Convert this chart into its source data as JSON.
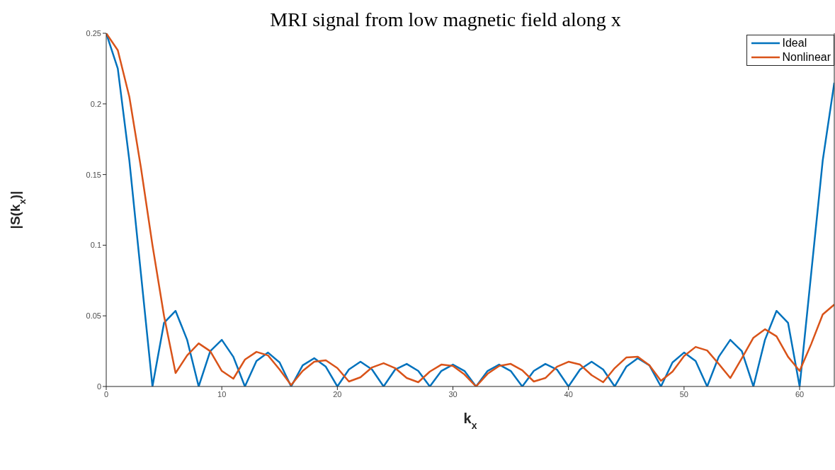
{
  "chart_data": {
    "type": "line",
    "title": "MRI signal from low magnetic field along x",
    "xlabel": "k$_{x}$",
    "ylabel": "|S(k$_{x}$)|",
    "x": [
      0,
      1,
      2,
      3,
      4,
      5,
      6,
      7,
      8,
      9,
      10,
      11,
      12,
      13,
      14,
      15,
      16,
      17,
      18,
      19,
      20,
      21,
      22,
      23,
      24,
      25,
      26,
      27,
      28,
      29,
      30,
      31,
      32,
      33,
      34,
      35,
      36,
      37,
      38,
      39,
      40,
      41,
      42,
      43,
      44,
      45,
      46,
      47,
      48,
      49,
      50,
      51,
      52,
      53,
      54,
      55,
      56,
      57,
      58,
      59,
      60,
      61,
      62,
      63
    ],
    "series": [
      {
        "name": "Ideal",
        "color": "#0072bd",
        "values": [
          0.25,
          0.225,
          0.16,
          0.08,
          0,
          0.045,
          0.0535,
          0.033,
          0,
          0.025,
          0.033,
          0.021,
          0,
          0.018,
          0.024,
          0.017,
          0,
          0.015,
          0.02,
          0.014,
          0,
          0.012,
          0.0175,
          0.012,
          0,
          0.012,
          0.016,
          0.011,
          0,
          0.011,
          0.0155,
          0.011,
          0,
          0.011,
          0.0155,
          0.011,
          0,
          0.011,
          0.016,
          0.012,
          0,
          0.012,
          0.0175,
          0.012,
          0,
          0.014,
          0.02,
          0.015,
          0,
          0.017,
          0.024,
          0.018,
          0,
          0.021,
          0.033,
          0.025,
          0,
          0.033,
          0.0535,
          0.045,
          0,
          0.08,
          0.16,
          0.215
        ]
      },
      {
        "name": "Nonlinear",
        "color": "#d95319",
        "values": [
          0.25,
          0.238,
          0.205,
          0.155,
          0.1,
          0.05,
          0.0095,
          0.022,
          0.0305,
          0.025,
          0.011,
          0.0055,
          0.019,
          0.0245,
          0.022,
          0.012,
          0.001,
          0.011,
          0.0175,
          0.0185,
          0.013,
          0.0035,
          0.0065,
          0.0135,
          0.0165,
          0.013,
          0.006,
          0.003,
          0.0105,
          0.0155,
          0.0145,
          0.0085,
          0,
          0.009,
          0.0145,
          0.016,
          0.0115,
          0.0035,
          0.006,
          0.014,
          0.0175,
          0.0155,
          0.008,
          0.003,
          0.013,
          0.0205,
          0.021,
          0.015,
          0.004,
          0.0105,
          0.0215,
          0.028,
          0.0255,
          0.016,
          0.006,
          0.02,
          0.0345,
          0.0405,
          0.0355,
          0.021,
          0.011,
          0.03,
          0.051,
          0.058
        ]
      }
    ],
    "xlim": [
      0,
      63
    ],
    "xticks": [
      0,
      10,
      20,
      30,
      40,
      50,
      60
    ],
    "ylim": [
      0,
      0.25
    ],
    "yticks": [
      0,
      0.05,
      0.1,
      0.15,
      0.2,
      0.25
    ],
    "grid": false,
    "legend": "top right",
    "marker": "none",
    "line_style": "solid"
  }
}
